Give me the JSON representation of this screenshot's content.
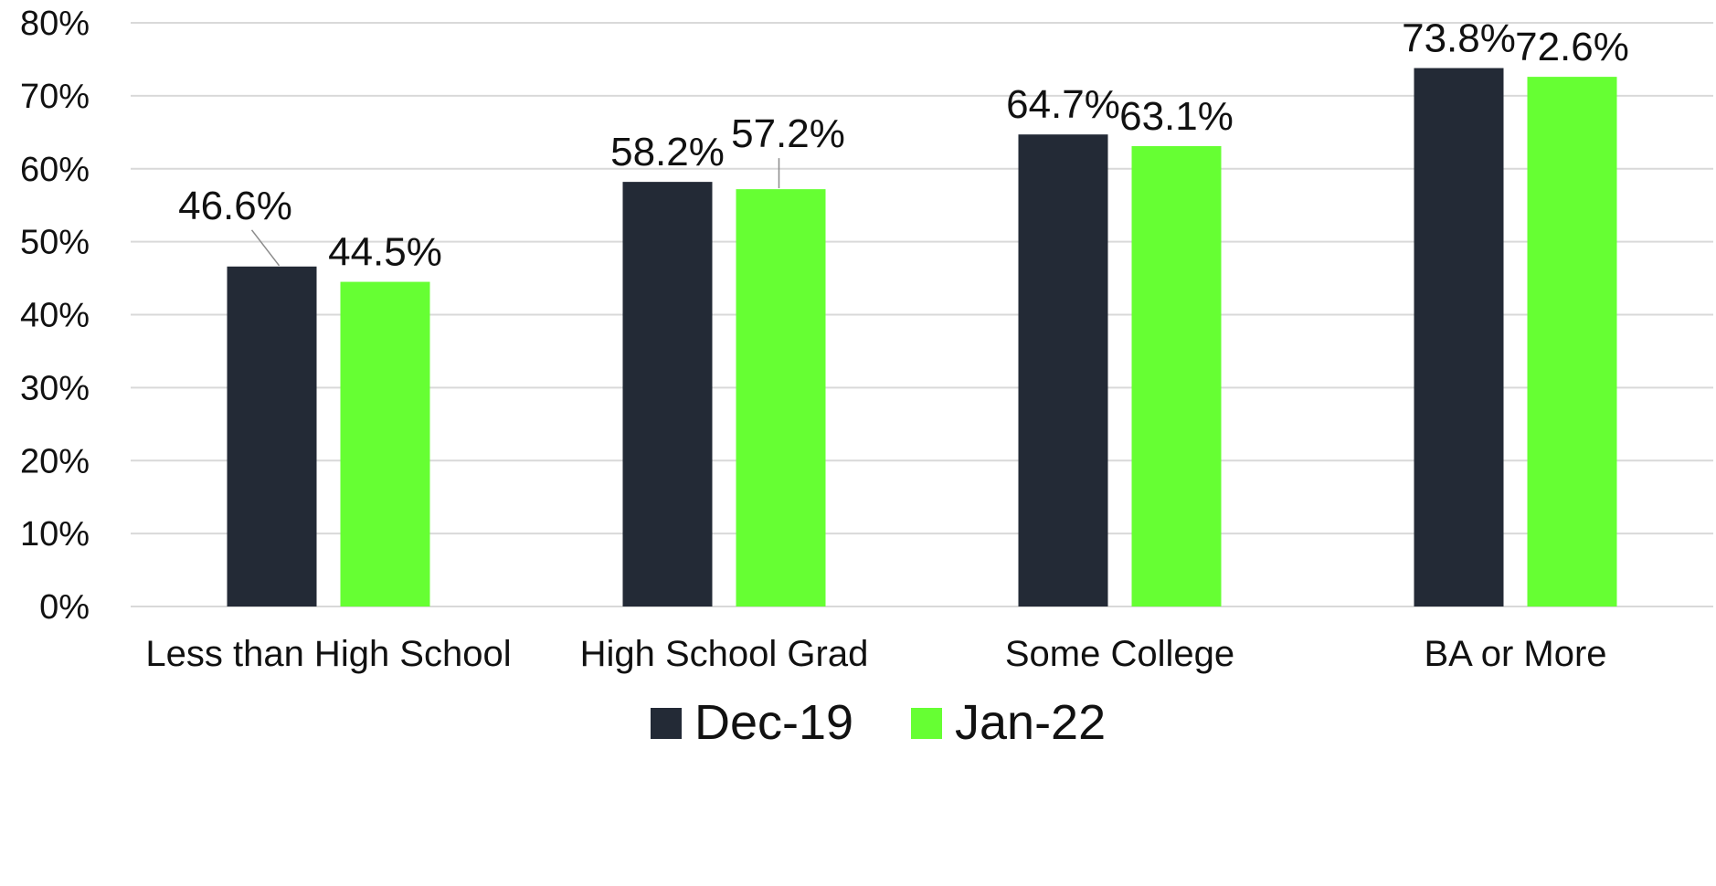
{
  "chart_data": {
    "type": "bar",
    "title": "",
    "xlabel": "",
    "ylabel": "",
    "categories": [
      "Less than High School",
      "High School Grad",
      "Some College",
      "BA or More"
    ],
    "series": [
      {
        "name": "Dec-19",
        "values": [
          46.6,
          58.2,
          64.7,
          73.8
        ],
        "labels": [
          "46.6%",
          "58.2%",
          "64.7%",
          "73.8%"
        ],
        "color": "#232a36"
      },
      {
        "name": "Jan-22",
        "values": [
          44.5,
          57.2,
          63.1,
          72.6
        ],
        "labels": [
          "44.5%",
          "57.2%",
          "63.1%",
          "72.6%"
        ],
        "color": "#66ff33"
      }
    ],
    "ylim": [
      0,
      80
    ],
    "yticks": [
      0,
      10,
      20,
      30,
      40,
      50,
      60,
      70,
      80
    ],
    "ytick_labels": [
      "0%",
      "10%",
      "20%",
      "30%",
      "40%",
      "50%",
      "60%",
      "70%",
      "80%"
    ],
    "grid": true,
    "legend_position": "bottom"
  }
}
